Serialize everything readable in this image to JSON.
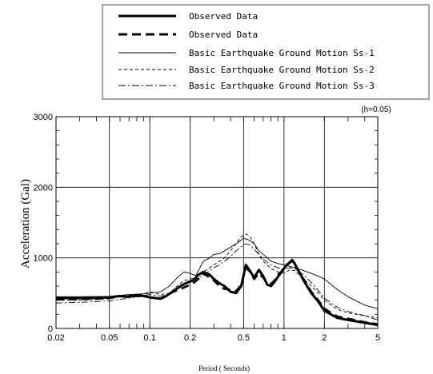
{
  "chart_data": {
    "type": "line",
    "x_scale": "log",
    "xlim": [
      0.02,
      5
    ],
    "ylim": [
      0,
      3000
    ],
    "xlabel": "Period ( Seconds)",
    "ylabel": "Acceleration (Gal)",
    "annotation": "(h=0.05)",
    "grid": true,
    "legend_placement": "top",
    "x_ticks": [
      0.02,
      0.05,
      0.1,
      0.2,
      0.5,
      1,
      2,
      5
    ],
    "x_tick_labels": [
      "0.02",
      "0.05",
      "0.1",
      "0.2",
      "0.5",
      "1",
      "2",
      "5"
    ],
    "y_ticks": [
      0,
      1000,
      2000,
      3000
    ],
    "y_tick_labels": [
      "0",
      "1000",
      "2000",
      "3000"
    ],
    "series": [
      {
        "name": "Observed Data",
        "style": "thick-solid",
        "x": [
          0.02,
          0.03,
          0.04,
          0.05,
          0.06,
          0.07,
          0.08,
          0.09,
          0.1,
          0.11,
          0.12,
          0.13,
          0.15,
          0.17,
          0.19,
          0.21,
          0.23,
          0.25,
          0.28,
          0.3,
          0.33,
          0.36,
          0.4,
          0.44,
          0.48,
          0.52,
          0.56,
          0.6,
          0.65,
          0.7,
          0.75,
          0.8,
          0.85,
          0.9,
          0.95,
          1.0,
          1.05,
          1.1,
          1.15,
          1.2,
          1.3,
          1.4,
          1.6,
          1.8,
          2.0,
          2.5,
          3.0,
          4.0,
          5.0
        ],
        "y": [
          430,
          430,
          435,
          440,
          460,
          450,
          470,
          460,
          440,
          430,
          420,
          450,
          530,
          600,
          650,
          680,
          760,
          800,
          760,
          700,
          640,
          600,
          520,
          500,
          600,
          900,
          810,
          720,
          830,
          740,
          620,
          600,
          660,
          730,
          790,
          850,
          900,
          930,
          970,
          920,
          800,
          680,
          500,
          380,
          250,
          150,
          120,
          80,
          50
        ]
      },
      {
        "name": "Observed Data",
        "style": "thick-dashed",
        "x": [
          0.02,
          0.03,
          0.04,
          0.05,
          0.06,
          0.07,
          0.08,
          0.09,
          0.1,
          0.11,
          0.12,
          0.13,
          0.15,
          0.17,
          0.19,
          0.21,
          0.23,
          0.25,
          0.28,
          0.3,
          0.33,
          0.36,
          0.4,
          0.44,
          0.48,
          0.52,
          0.56,
          0.6,
          0.65,
          0.7,
          0.75,
          0.8,
          0.85,
          0.9,
          0.95,
          1.0,
          1.05,
          1.1,
          1.15,
          1.2,
          1.3,
          1.4,
          1.6,
          1.8,
          2.0,
          2.5,
          3.0,
          4.0,
          5.0
        ],
        "y": [
          410,
          415,
          420,
          430,
          455,
          445,
          460,
          455,
          440,
          430,
          425,
          455,
          520,
          560,
          600,
          640,
          700,
          780,
          720,
          680,
          600,
          560,
          550,
          530,
          620,
          860,
          800,
          700,
          780,
          720,
          650,
          630,
          680,
          760,
          800,
          860,
          900,
          940,
          950,
          900,
          790,
          700,
          520,
          400,
          280,
          170,
          140,
          90,
          60
        ]
      },
      {
        "name": "Basic Earthquake Ground Motion Ss-1",
        "style": "thin-solid",
        "x": [
          0.02,
          0.03,
          0.05,
          0.07,
          0.09,
          0.1,
          0.12,
          0.14,
          0.16,
          0.18,
          0.2,
          0.22,
          0.25,
          0.28,
          0.3,
          0.33,
          0.36,
          0.4,
          0.44,
          0.48,
          0.5,
          0.55,
          0.6,
          0.65,
          0.7,
          0.75,
          0.8,
          0.9,
          1.0,
          1.1,
          1.2,
          1.4,
          1.6,
          1.8,
          2.0,
          2.5,
          3.0,
          4.0,
          5.0
        ],
        "y": [
          450,
          450,
          455,
          480,
          490,
          500,
          520,
          600,
          720,
          800,
          780,
          750,
          950,
          1000,
          1050,
          1060,
          1100,
          1150,
          1200,
          1250,
          1280,
          1250,
          1200,
          1100,
          1050,
          1000,
          950,
          920,
          900,
          880,
          860,
          820,
          780,
          740,
          700,
          550,
          450,
          330,
          280
        ]
      },
      {
        "name": "Basic Earthquake Ground Motion Ss-2",
        "style": "thin-dashed",
        "x": [
          0.02,
          0.03,
          0.05,
          0.07,
          0.09,
          0.1,
          0.12,
          0.14,
          0.16,
          0.18,
          0.2,
          0.22,
          0.25,
          0.28,
          0.3,
          0.33,
          0.36,
          0.4,
          0.44,
          0.48,
          0.52,
          0.56,
          0.6,
          0.65,
          0.7,
          0.8,
          0.9,
          1.0,
          1.1,
          1.2,
          1.4,
          1.6,
          1.8,
          2.0,
          2.5,
          3.0,
          4.0,
          5.0
        ],
        "y": [
          400,
          400,
          420,
          470,
          490,
          520,
          480,
          500,
          600,
          680,
          700,
          720,
          800,
          860,
          900,
          950,
          1000,
          1100,
          1200,
          1300,
          1340,
          1300,
          1200,
          1050,
          950,
          850,
          800,
          780,
          830,
          820,
          700,
          600,
          500,
          400,
          270,
          220,
          180,
          150
        ]
      },
      {
        "name": "Basic Earthquake Ground Motion Ss-3",
        "style": "dash-dot",
        "x": [
          0.02,
          0.03,
          0.05,
          0.07,
          0.09,
          0.1,
          0.12,
          0.14,
          0.16,
          0.18,
          0.2,
          0.22,
          0.25,
          0.28,
          0.3,
          0.33,
          0.36,
          0.4,
          0.44,
          0.48,
          0.52,
          0.56,
          0.6,
          0.65,
          0.7,
          0.8,
          0.9,
          1.0,
          1.1,
          1.2,
          1.4,
          1.6,
          1.8,
          2.0,
          2.5,
          3.0,
          4.0,
          5.0
        ],
        "y": [
          360,
          370,
          390,
          430,
          470,
          480,
          460,
          480,
          560,
          640,
          680,
          700,
          750,
          820,
          860,
          900,
          950,
          1020,
          1100,
          1160,
          1200,
          1180,
          1120,
          1050,
          980,
          900,
          860,
          840,
          860,
          850,
          760,
          650,
          540,
          430,
          300,
          240,
          180,
          120
        ]
      }
    ]
  }
}
